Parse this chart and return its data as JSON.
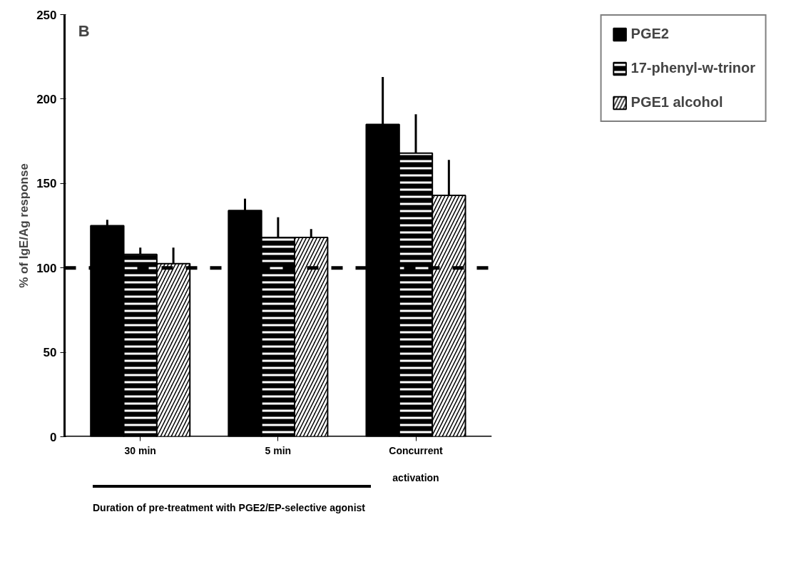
{
  "chart_data": {
    "type": "bar",
    "title": "B",
    "ylabel": "% of IgE/Ag response",
    "categories": [
      "30 min",
      "5 min",
      "Concurrent\n\nactivation"
    ],
    "series": [
      {
        "name": "PGE2",
        "color": "#000000",
        "values": [
          125,
          134,
          185
        ],
        "errors": [
          [
            125,
            128.5
          ],
          [
            134,
            141
          ],
          [
            185,
            213
          ]
        ]
      },
      {
        "name": "17-phenyl-w-trinor",
        "color": "#000000",
        "values": [
          108,
          118,
          168
        ],
        "errors": [
          [
            108,
            112
          ],
          [
            118,
            130
          ],
          [
            168,
            191
          ]
        ]
      },
      {
        "name": "PGE1 alcohol",
        "color": "#000000",
        "values": [
          102.5,
          118,
          143
        ],
        "errors": [
          [
            102.5,
            112
          ],
          [
            118,
            123
          ],
          [
            143,
            164
          ]
        ]
      }
    ],
    "ylim": [
      0,
      250
    ],
    "yticks": [
      0,
      50,
      100,
      150,
      200,
      250
    ],
    "grid": false,
    "legend": "top right",
    "ref_lines": [
      {
        "axis": "y",
        "value": 100,
        "line_style": "dashed",
        "color": "#000000"
      }
    ],
    "annotations": [
      "Duration of pre-treatment with PGE2/EP-selective agonist"
    ]
  }
}
